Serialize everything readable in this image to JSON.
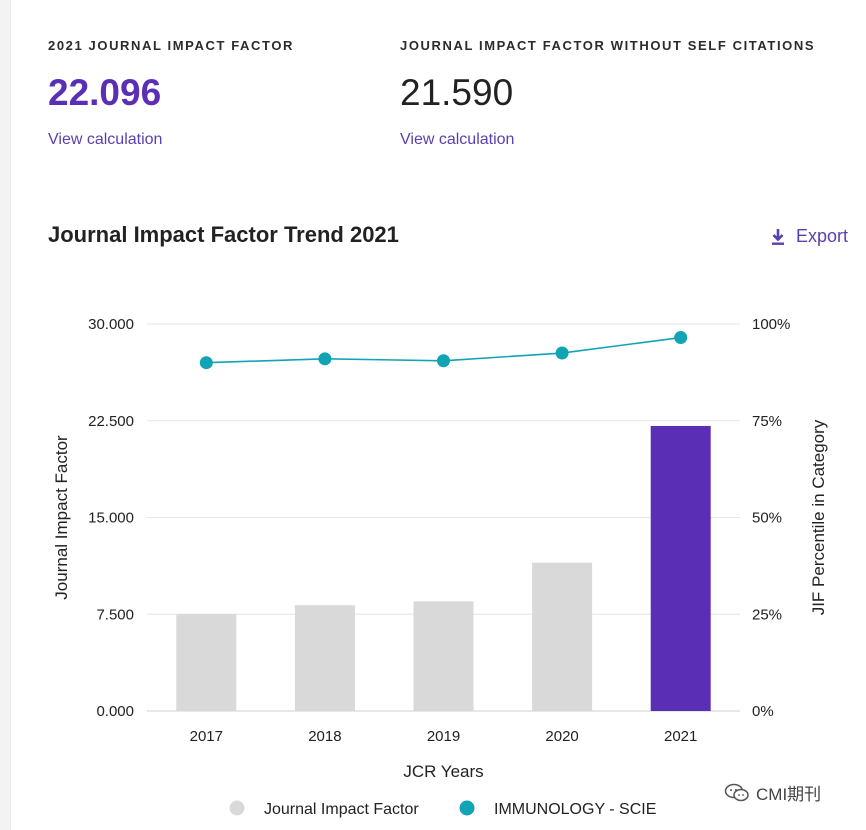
{
  "metrics": {
    "jif": {
      "label": "2021 JOURNAL IMPACT FACTOR",
      "value": "22.096",
      "link": "View calculation"
    },
    "jif_no_self": {
      "label": "JOURNAL IMPACT FACTOR WITHOUT SELF CITATIONS",
      "value": "21.590",
      "link": "View calculation"
    }
  },
  "section": {
    "title": "Journal Impact Factor Trend 2021",
    "export_label": "Export",
    "export_icon": "download-icon"
  },
  "watermark": {
    "text": "CMI期刊",
    "icon": "chat-bubbles-icon"
  },
  "colors": {
    "accent": "#5b2fb5",
    "bar_default": "#d9d9d9",
    "line": "#12a3b4",
    "grid": "#e6e6e6"
  },
  "chart_data": {
    "type": "bar",
    "categories": [
      "2017",
      "2018",
      "2019",
      "2020",
      "2021"
    ],
    "series": [
      {
        "name": "Journal Impact Factor",
        "type": "bar",
        "axis": "left",
        "values": [
          7.5,
          8.2,
          8.5,
          11.5,
          22.096
        ],
        "highlight_index": 4
      },
      {
        "name": "IMMUNOLOGY - SCIE",
        "type": "line",
        "axis": "right",
        "values": [
          90,
          91,
          90.5,
          92.5,
          96.5
        ]
      }
    ],
    "xlabel": "JCR Years",
    "ylabel": "Journal Impact Factor",
    "y2label": "JIF Percentile in Category",
    "ylim": [
      0,
      30
    ],
    "y2lim": [
      0,
      100
    ],
    "yticks": [
      "0.000",
      "7.500",
      "15.000",
      "22.500",
      "30.000"
    ],
    "y2ticks": [
      "0%",
      "25%",
      "50%",
      "75%",
      "100%"
    ],
    "grid": true,
    "legend": "bottom"
  }
}
